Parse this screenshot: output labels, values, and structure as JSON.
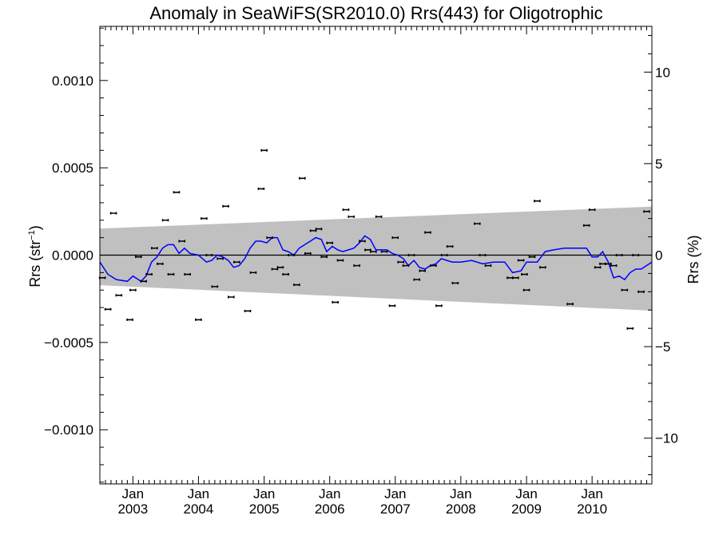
{
  "chart_data": {
    "type": "scatter",
    "title": "Anomaly in SeaWiFS(SR2010.0) Rrs(443) for Oligotrophic",
    "ylabel_left": "Rrs (str",
    "ylabel_left_sup": "−1",
    "ylabel_left_close": ")",
    "ylabel_right": "Rrs (%)",
    "xlim": [
      "2002-07-01",
      "2010-11-30"
    ],
    "ylim_left": [
      -0.00131,
      0.00131
    ],
    "ylim_right": [
      -12.5,
      12.5
    ],
    "left_ticks": [
      {
        "v": 0.001,
        "label": "0.0010"
      },
      {
        "v": 0.0005,
        "label": "0.0005"
      },
      {
        "v": 0.0,
        "label": "0.0000"
      },
      {
        "v": -0.0005,
        "label": "−0.0005"
      },
      {
        "v": -0.001,
        "label": "−0.0010"
      }
    ],
    "right_ticks": [
      {
        "v": 10,
        "label": "10"
      },
      {
        "v": 5,
        "label": "5"
      },
      {
        "v": 0,
        "label": "0"
      },
      {
        "v": -5,
        "label": "−5"
      },
      {
        "v": -10,
        "label": "−10"
      }
    ],
    "x_ticks": [
      {
        "date": "2003-01-01",
        "month": "Jan",
        "year": "2003"
      },
      {
        "date": "2004-01-01",
        "month": "Jan",
        "year": "2004"
      },
      {
        "date": "2005-01-01",
        "month": "Jan",
        "year": "2005"
      },
      {
        "date": "2006-01-01",
        "month": "Jan",
        "year": "2006"
      },
      {
        "date": "2007-01-01",
        "month": "Jan",
        "year": "2007"
      },
      {
        "date": "2008-01-01",
        "month": "Jan",
        "year": "2008"
      },
      {
        "date": "2009-01-01",
        "month": "Jan",
        "year": "2009"
      },
      {
        "date": "2010-01-01",
        "month": "Jan",
        "year": "2010"
      }
    ],
    "band": {
      "start": "2002-07-01",
      "end": "2010-11-30",
      "upper": [
        0.000152,
        0.000278
      ],
      "lower": [
        -0.000172,
        -0.000318
      ]
    },
    "zero_line": 0.0,
    "points": [
      {
        "date": "2002-07-15",
        "value": -0.00013
      },
      {
        "date": "2002-08-15",
        "value": -0.00031
      },
      {
        "date": "2002-09-15",
        "value": 0.00024
      },
      {
        "date": "2002-10-15",
        "value": -0.00023
      },
      {
        "date": "2002-12-15",
        "value": -0.00037
      },
      {
        "date": "2003-01-01",
        "value": -0.0002
      },
      {
        "date": "2003-02-01",
        "value": -1e-05
      },
      {
        "date": "2003-03-01",
        "value": -0.00015
      },
      {
        "date": "2003-04-01",
        "value": -0.00011
      },
      {
        "date": "2003-05-01",
        "value": 4e-05
      },
      {
        "date": "2003-06-01",
        "value": -5e-05
      },
      {
        "date": "2003-07-01",
        "value": 0.0002
      },
      {
        "date": "2003-08-01",
        "value": -0.00011
      },
      {
        "date": "2003-09-01",
        "value": 0.00036
      },
      {
        "date": "2003-10-01",
        "value": 8e-05
      },
      {
        "date": "2003-11-01",
        "value": -0.00011
      },
      {
        "date": "2004-01-01",
        "value": -0.00037
      },
      {
        "date": "2004-02-01",
        "value": 0.00021
      },
      {
        "date": "2004-03-01",
        "value": 0.0
      },
      {
        "date": "2004-04-01",
        "value": -0.00018
      },
      {
        "date": "2004-05-01",
        "value": -2e-05
      },
      {
        "date": "2004-06-01",
        "value": 0.00028
      },
      {
        "date": "2004-07-01",
        "value": -0.00024
      },
      {
        "date": "2004-08-01",
        "value": -4e-05
      },
      {
        "date": "2004-10-01",
        "value": -0.00032
      },
      {
        "date": "2004-11-01",
        "value": -0.0001
      },
      {
        "date": "2004-12-15",
        "value": 0.00038
      },
      {
        "date": "2005-01-01",
        "value": 0.0006
      },
      {
        "date": "2005-02-01",
        "value": 0.0001
      },
      {
        "date": "2005-03-01",
        "value": -8e-05
      },
      {
        "date": "2005-04-01",
        "value": -7e-05
      },
      {
        "date": "2005-05-01",
        "value": -0.00011
      },
      {
        "date": "2005-06-01",
        "value": 0.0
      },
      {
        "date": "2005-07-01",
        "value": -0.00017
      },
      {
        "date": "2005-08-01",
        "value": 0.00044
      },
      {
        "date": "2005-09-01",
        "value": 1e-05
      },
      {
        "date": "2005-10-01",
        "value": 0.00014
      },
      {
        "date": "2005-11-01",
        "value": 0.00015
      },
      {
        "date": "2005-12-01",
        "value": -1e-05
      },
      {
        "date": "2006-01-01",
        "value": 7e-05
      },
      {
        "date": "2006-02-01",
        "value": -0.00027
      },
      {
        "date": "2006-03-01",
        "value": -3e-05
      },
      {
        "date": "2006-04-01",
        "value": 0.00026
      },
      {
        "date": "2006-05-01",
        "value": 0.00022
      },
      {
        "date": "2006-06-01",
        "value": -6e-05
      },
      {
        "date": "2006-07-01",
        "value": 8e-05
      },
      {
        "date": "2006-08-01",
        "value": 3e-05
      },
      {
        "date": "2006-09-01",
        "value": 2e-05
      },
      {
        "date": "2006-10-01",
        "value": 0.00022
      },
      {
        "date": "2006-11-01",
        "value": 2e-05
      },
      {
        "date": "2006-12-15",
        "value": -0.00029
      },
      {
        "date": "2007-01-01",
        "value": 0.0001
      },
      {
        "date": "2007-02-01",
        "value": -4e-05
      },
      {
        "date": "2007-03-01",
        "value": -6e-05
      },
      {
        "date": "2007-04-01",
        "value": 0.0
      },
      {
        "date": "2007-05-01",
        "value": -0.00014
      },
      {
        "date": "2007-06-01",
        "value": -9e-05
      },
      {
        "date": "2007-07-01",
        "value": 0.00013
      },
      {
        "date": "2007-08-01",
        "value": -6e-05
      },
      {
        "date": "2007-09-01",
        "value": -0.00029
      },
      {
        "date": "2007-10-01",
        "value": 0.0
      },
      {
        "date": "2007-11-01",
        "value": 5e-05
      },
      {
        "date": "2007-12-01",
        "value": -0.00016
      },
      {
        "date": "2008-04-01",
        "value": 0.00018
      },
      {
        "date": "2008-05-01",
        "value": 0.0
      },
      {
        "date": "2008-06-01",
        "value": -6e-05
      },
      {
        "date": "2008-10-01",
        "value": -0.00013
      },
      {
        "date": "2008-11-01",
        "value": -0.00013
      },
      {
        "date": "2008-12-01",
        "value": -3e-05
      },
      {
        "date": "2008-12-20",
        "value": -0.00011
      },
      {
        "date": "2009-01-01",
        "value": -0.0002
      },
      {
        "date": "2009-02-01",
        "value": -1e-05
      },
      {
        "date": "2009-03-01",
        "value": 0.00031
      },
      {
        "date": "2009-04-01",
        "value": -7e-05
      },
      {
        "date": "2009-09-01",
        "value": -0.00028
      },
      {
        "date": "2009-12-01",
        "value": 0.00017
      },
      {
        "date": "2010-01-01",
        "value": 0.00026
      },
      {
        "date": "2010-02-01",
        "value": -7e-05
      },
      {
        "date": "2010-03-01",
        "value": -5e-05
      },
      {
        "date": "2010-04-01",
        "value": -5e-05
      },
      {
        "date": "2010-05-01",
        "value": -6e-05
      },
      {
        "date": "2010-06-01",
        "value": 0.0
      },
      {
        "date": "2010-07-01",
        "value": -0.0002
      },
      {
        "date": "2010-08-01",
        "value": -0.00042
      },
      {
        "date": "2010-09-01",
        "value": 0.0
      },
      {
        "date": "2010-10-01",
        "value": -0.00021
      },
      {
        "date": "2010-11-01",
        "value": 0.00025
      }
    ],
    "smooth_line": [
      {
        "date": "2002-07-01",
        "value": -4e-05
      },
      {
        "date": "2002-08-15",
        "value": -0.00011
      },
      {
        "date": "2002-10-01",
        "value": -0.00014
      },
      {
        "date": "2002-12-01",
        "value": -0.00015
      },
      {
        "date": "2003-01-01",
        "value": -0.00012
      },
      {
        "date": "2003-02-15",
        "value": -0.00015
      },
      {
        "date": "2003-03-15",
        "value": -0.00012
      },
      {
        "date": "2003-04-15",
        "value": -4e-05
      },
      {
        "date": "2003-05-15",
        "value": -1e-05
      },
      {
        "date": "2003-06-15",
        "value": 4e-05
      },
      {
        "date": "2003-07-15",
        "value": 6e-05
      },
      {
        "date": "2003-08-15",
        "value": 6e-05
      },
      {
        "date": "2003-09-15",
        "value": 1e-05
      },
      {
        "date": "2003-10-15",
        "value": 4e-05
      },
      {
        "date": "2003-11-15",
        "value": 1e-05
      },
      {
        "date": "2004-01-01",
        "value": 0.0
      },
      {
        "date": "2004-02-15",
        "value": -4e-05
      },
      {
        "date": "2004-03-15",
        "value": -3e-05
      },
      {
        "date": "2004-04-15",
        "value": 0.0
      },
      {
        "date": "2004-05-15",
        "value": -1e-05
      },
      {
        "date": "2004-06-15",
        "value": -3e-05
      },
      {
        "date": "2004-07-15",
        "value": -7e-05
      },
      {
        "date": "2004-08-15",
        "value": -6e-05
      },
      {
        "date": "2004-09-15",
        "value": -2e-05
      },
      {
        "date": "2004-10-15",
        "value": 4e-05
      },
      {
        "date": "2004-11-15",
        "value": 8e-05
      },
      {
        "date": "2004-12-15",
        "value": 8e-05
      },
      {
        "date": "2005-01-15",
        "value": 7e-05
      },
      {
        "date": "2005-02-15",
        "value": 0.0001
      },
      {
        "date": "2005-03-15",
        "value": 0.0001
      },
      {
        "date": "2005-04-15",
        "value": 3e-05
      },
      {
        "date": "2005-05-15",
        "value": 2e-05
      },
      {
        "date": "2005-06-15",
        "value": 0.0
      },
      {
        "date": "2005-07-15",
        "value": 4e-05
      },
      {
        "date": "2005-08-15",
        "value": 6e-05
      },
      {
        "date": "2005-09-15",
        "value": 8e-05
      },
      {
        "date": "2005-10-15",
        "value": 0.0001
      },
      {
        "date": "2005-11-15",
        "value": 9e-05
      },
      {
        "date": "2005-12-15",
        "value": 2e-05
      },
      {
        "date": "2006-01-15",
        "value": 5e-05
      },
      {
        "date": "2006-02-15",
        "value": 3e-05
      },
      {
        "date": "2006-03-15",
        "value": 2e-05
      },
      {
        "date": "2006-04-15",
        "value": 3e-05
      },
      {
        "date": "2006-05-15",
        "value": 4e-05
      },
      {
        "date": "2006-06-15",
        "value": 7e-05
      },
      {
        "date": "2006-07-15",
        "value": 0.00011
      },
      {
        "date": "2006-08-15",
        "value": 9e-05
      },
      {
        "date": "2006-09-15",
        "value": 3e-05
      },
      {
        "date": "2006-10-15",
        "value": 3e-05
      },
      {
        "date": "2006-11-15",
        "value": 3e-05
      },
      {
        "date": "2006-12-15",
        "value": 1e-05
      },
      {
        "date": "2007-01-15",
        "value": 0.0
      },
      {
        "date": "2007-02-15",
        "value": -2e-05
      },
      {
        "date": "2007-03-15",
        "value": -6e-05
      },
      {
        "date": "2007-04-15",
        "value": -3e-05
      },
      {
        "date": "2007-05-15",
        "value": -7e-05
      },
      {
        "date": "2007-06-15",
        "value": -8e-05
      },
      {
        "date": "2007-07-15",
        "value": -6e-05
      },
      {
        "date": "2007-08-15",
        "value": -5e-05
      },
      {
        "date": "2007-09-15",
        "value": -2e-05
      },
      {
        "date": "2007-10-15",
        "value": -3e-05
      },
      {
        "date": "2007-11-15",
        "value": -4e-05
      },
      {
        "date": "2008-01-01",
        "value": -4e-05
      },
      {
        "date": "2008-03-01",
        "value": -3e-05
      },
      {
        "date": "2008-05-01",
        "value": -5e-05
      },
      {
        "date": "2008-07-01",
        "value": -4e-05
      },
      {
        "date": "2008-09-01",
        "value": -4e-05
      },
      {
        "date": "2008-10-15",
        "value": -0.0001
      },
      {
        "date": "2008-12-01",
        "value": -9e-05
      },
      {
        "date": "2009-01-01",
        "value": -4e-05
      },
      {
        "date": "2009-03-01",
        "value": -4e-05
      },
      {
        "date": "2009-04-15",
        "value": 2e-05
      },
      {
        "date": "2009-06-01",
        "value": 3e-05
      },
      {
        "date": "2009-08-01",
        "value": 4e-05
      },
      {
        "date": "2009-10-01",
        "value": 4e-05
      },
      {
        "date": "2009-12-01",
        "value": 4e-05
      },
      {
        "date": "2010-01-01",
        "value": -1e-05
      },
      {
        "date": "2010-02-01",
        "value": -1e-05
      },
      {
        "date": "2010-03-01",
        "value": 2e-05
      },
      {
        "date": "2010-04-01",
        "value": -4e-05
      },
      {
        "date": "2010-05-01",
        "value": -0.00013
      },
      {
        "date": "2010-06-01",
        "value": -0.00012
      },
      {
        "date": "2010-07-01",
        "value": -0.00014
      },
      {
        "date": "2010-08-01",
        "value": -0.0001
      },
      {
        "date": "2010-09-01",
        "value": -8e-05
      },
      {
        "date": "2010-10-01",
        "value": -8e-05
      },
      {
        "date": "2010-11-30",
        "value": -4e-05
      }
    ],
    "colors": {
      "band": "#c0c0c0",
      "smooth_line": "#0000ff",
      "points": "#000000",
      "axes": "#000000"
    }
  }
}
